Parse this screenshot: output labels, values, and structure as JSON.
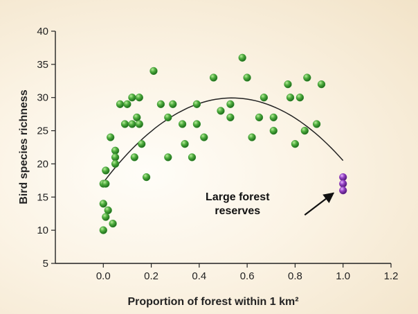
{
  "chart_data": {
    "type": "scatter",
    "title": "",
    "xlabel": "Proportion of forest within 1 km²",
    "ylabel": "Bird species richness",
    "xlim": [
      -0.2,
      1.2
    ],
    "ylim": [
      5,
      40
    ],
    "xticks": [
      0.0,
      0.2,
      0.4,
      0.6,
      0.8,
      1.0,
      1.2
    ],
    "xtick_labels": [
      "0.0",
      "0.2",
      "0.4",
      "0.6",
      "0.8",
      "1.0",
      "1.2"
    ],
    "yticks": [
      5,
      10,
      15,
      20,
      25,
      30,
      35,
      40
    ],
    "ytick_labels": [
      "5",
      "10",
      "15",
      "20",
      "25",
      "30",
      "35",
      "40"
    ],
    "grid": false,
    "series": [
      {
        "color": "#3f9a36",
        "points": [
          [
            0.0,
            17
          ],
          [
            0.01,
            17
          ],
          [
            0.01,
            19
          ],
          [
            0.0,
            14
          ],
          [
            0.02,
            13
          ],
          [
            0.01,
            12
          ],
          [
            0.0,
            10
          ],
          [
            0.04,
            11
          ],
          [
            0.03,
            24
          ],
          [
            0.05,
            22
          ],
          [
            0.05,
            21
          ],
          [
            0.05,
            20
          ],
          [
            0.07,
            29
          ],
          [
            0.1,
            29
          ],
          [
            0.09,
            26
          ],
          [
            0.12,
            26
          ],
          [
            0.12,
            30
          ],
          [
            0.13,
            21
          ],
          [
            0.14,
            27
          ],
          [
            0.15,
            30
          ],
          [
            0.15,
            26
          ],
          [
            0.16,
            23
          ],
          [
            0.18,
            18
          ],
          [
            0.21,
            34
          ],
          [
            0.24,
            29
          ],
          [
            0.27,
            21
          ],
          [
            0.27,
            27
          ],
          [
            0.29,
            29
          ],
          [
            0.33,
            26
          ],
          [
            0.34,
            23
          ],
          [
            0.37,
            21
          ],
          [
            0.39,
            29
          ],
          [
            0.39,
            26
          ],
          [
            0.42,
            24
          ],
          [
            0.46,
            33
          ],
          [
            0.49,
            28
          ],
          [
            0.53,
            27
          ],
          [
            0.53,
            29
          ],
          [
            0.58,
            36
          ],
          [
            0.6,
            33
          ],
          [
            0.62,
            24
          ],
          [
            0.65,
            27
          ],
          [
            0.67,
            30
          ],
          [
            0.71,
            27
          ],
          [
            0.71,
            25
          ],
          [
            0.77,
            32
          ],
          [
            0.78,
            30
          ],
          [
            0.8,
            23
          ],
          [
            0.82,
            30
          ],
          [
            0.84,
            25
          ],
          [
            0.85,
            33
          ],
          [
            0.89,
            26
          ],
          [
            0.91,
            32
          ]
        ]
      },
      {
        "color": "#8a3ab5",
        "points": [
          [
            1.0,
            18
          ],
          [
            1.0,
            17
          ],
          [
            1.0,
            16
          ]
        ]
      }
    ],
    "fit_curve": {
      "type": "quadratic",
      "coefficients": [
        17.2,
        47.4,
        -44.1
      ],
      "x_range": [
        0.0,
        1.0
      ],
      "color": "#222222"
    },
    "annotations": [
      {
        "text": [
          "Large forest",
          "reserves"
        ],
        "text_at": [
          0.56,
          14.5
        ],
        "arrow_from": [
          0.84,
          12.3
        ],
        "arrow_to": [
          0.96,
          15.6
        ]
      }
    ]
  }
}
